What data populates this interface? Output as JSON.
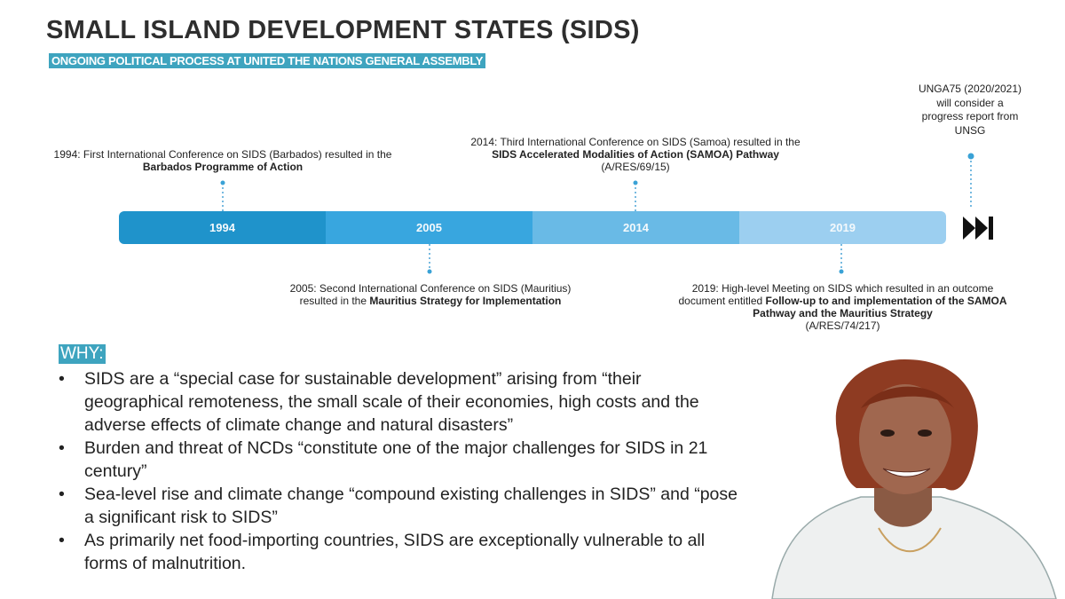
{
  "header": {
    "title": "SMALL ISLAND DEVELOPMENT STATES (SIDS)",
    "subtitle": "ONGOING POLITICAL PROCESS AT UNITED THE NATIONS GENERAL ASSEMBLY"
  },
  "timeline": {
    "segments": [
      "1994",
      "2005",
      "2014",
      "2019"
    ],
    "events": [
      {
        "pre": "1994: First International Conference on SIDS (Barbados) resulted in the ",
        "bold": "Barbados Programme of Action"
      },
      {
        "pre": "2005: Second International Conference on SIDS (Mauritius) resulted in the ",
        "bold": "Mauritius Strategy for Implementation"
      },
      {
        "pre": "2014: Third International Conference on SIDS (Samoa) resulted in the ",
        "bold": "SIDS Accelerated Modalities of Action (SAMOA) Pathway",
        "post": "(A/RES/69/15)"
      },
      {
        "pre": "2019: High-level Meeting on SIDS which resulted in an outcome document entitled ",
        "bold": "Follow-up to and implementation of the SAMOA Pathway and the Mauritius Strategy",
        "post": "(A/RES/74/217)"
      }
    ],
    "future": "UNGA75 (2020/2021) will consider a progress report from UNSG"
  },
  "why": {
    "heading": "WHY:",
    "bullets": [
      "SIDS are a “special case for sustainable development” arising from “their geographical remoteness, the small scale of their economies, high costs and the adverse effects of climate change and natural disasters”",
      "Burden and threat of NCDs “constitute one of the major challenges for SIDS in 21 century”",
      "Sea-level rise and climate change  “compound existing challenges in SIDS” and “pose a significant risk to SIDS”",
      "As primarily net food-importing countries, SIDS are exceptionally vulnerable to all forms of malnutrition."
    ]
  }
}
